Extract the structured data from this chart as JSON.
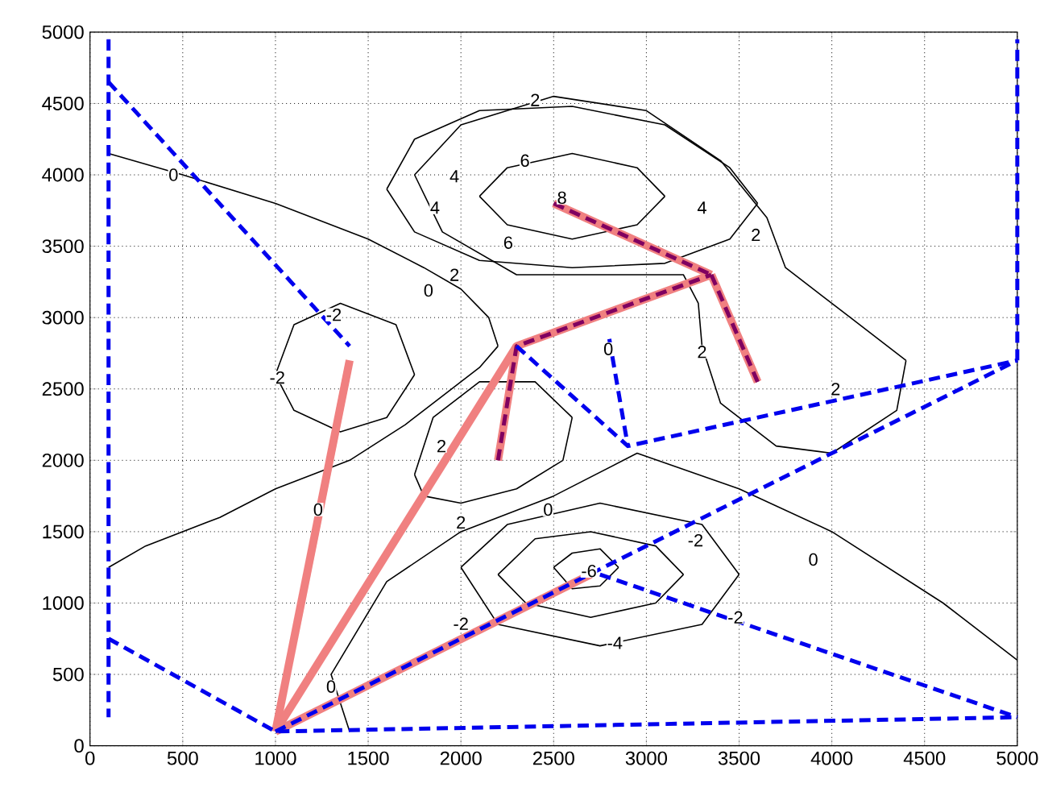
{
  "chart_data": {
    "type": "line",
    "xlim": [
      0,
      5000
    ],
    "ylim": [
      0,
      5000
    ],
    "xticks": [
      0,
      500,
      1000,
      1500,
      2000,
      2500,
      3000,
      3500,
      4000,
      4500,
      5000
    ],
    "yticks": [
      0,
      500,
      1000,
      1500,
      2000,
      2500,
      3000,
      3500,
      4000,
      4500,
      5000
    ],
    "grid": true,
    "marker": "none",
    "series": [
      {
        "color": "#000000",
        "line_style": "solid",
        "x": [
          100,
          500,
          1000,
          1500,
          1800,
          2000,
          2150,
          2200
        ],
        "values": [
          4150,
          4000,
          3800,
          3550,
          3350,
          3200,
          3000,
          2800
        ]
      },
      {
        "color": "#000000",
        "line_style": "solid",
        "x": [
          100,
          300,
          700,
          1000,
          1400,
          1700,
          1900,
          2100,
          2200
        ],
        "values": [
          1250,
          1400,
          1600,
          1800,
          2000,
          2250,
          2450,
          2650,
          2800
        ]
      },
      {
        "color": "#000000",
        "line_style": "solid",
        "x": [
          1000,
          1100,
          1350,
          1650,
          1750
        ],
        "values": [
          2600,
          2950,
          3100,
          2950,
          2600
        ]
      },
      {
        "color": "#000000",
        "line_style": "solid",
        "x": [
          1000,
          1100,
          1350,
          1600,
          1750
        ],
        "values": [
          2600,
          2350,
          2200,
          2300,
          2600
        ]
      },
      {
        "color": "#000000",
        "line_style": "solid",
        "x": [
          1750,
          1850,
          2100,
          2400,
          2600
        ],
        "values": [
          1900,
          2300,
          2550,
          2550,
          2300
        ]
      },
      {
        "color": "#000000",
        "line_style": "solid",
        "x": [
          1750,
          1800,
          2000,
          2300,
          2550,
          2600
        ],
        "values": [
          1900,
          1750,
          1700,
          1800,
          2000,
          2300
        ]
      },
      {
        "color": "#000000",
        "line_style": "solid",
        "x": [
          1750,
          2000,
          2500,
          3000,
          3400,
          3650,
          3750,
          4100,
          4400
        ],
        "values": [
          4000,
          4350,
          4550,
          4450,
          4100,
          3700,
          3350,
          3000,
          2700
        ]
      },
      {
        "color": "#000000",
        "line_style": "solid",
        "x": [
          1750,
          1900,
          2300,
          2800,
          3200,
          3280,
          3300,
          3400,
          3700,
          4000,
          4350,
          4400
        ],
        "values": [
          4000,
          3600,
          3300,
          3300,
          3300,
          3100,
          2800,
          2400,
          2100,
          2050,
          2350,
          2700
        ]
      },
      {
        "color": "#000000",
        "line_style": "solid",
        "x": [
          1600,
          1750,
          2100,
          2600,
          3100,
          3450,
          3600
        ],
        "values": [
          3900,
          4250,
          4450,
          4480,
          4350,
          4050,
          3800
        ]
      },
      {
        "color": "#000000",
        "line_style": "solid",
        "x": [
          1600,
          1750,
          2100,
          2600,
          3100,
          3450,
          3600
        ],
        "values": [
          3900,
          3600,
          3400,
          3350,
          3380,
          3550,
          3800
        ]
      },
      {
        "color": "#000000",
        "line_style": "solid",
        "x": [
          2100,
          2250,
          2600,
          2950,
          3100
        ],
        "values": [
          3850,
          4050,
          4150,
          4050,
          3850
        ]
      },
      {
        "color": "#000000",
        "line_style": "solid",
        "x": [
          2100,
          2250,
          2600,
          2950,
          3100
        ],
        "values": [
          3850,
          3650,
          3550,
          3650,
          3850
        ]
      },
      {
        "color": "#000000",
        "line_style": "solid",
        "x": [
          1300,
          1400
        ],
        "values": [
          500,
          100
        ]
      },
      {
        "color": "#000000",
        "line_style": "solid",
        "x": [
          1300,
          1350,
          1600,
          2000,
          2500,
          2950,
          3500,
          4000,
          4600,
          5000
        ],
        "values": [
          500,
          null,
          1150,
          1500,
          1750,
          2050,
          1800,
          1500,
          1000,
          600
        ]
      },
      {
        "color": "#000000",
        "line_style": "solid",
        "x": [
          2000,
          2250,
          2750,
          3300,
          3500
        ],
        "values": [
          1250,
          1550,
          1700,
          1550,
          1200
        ]
      },
      {
        "color": "#000000",
        "line_style": "solid",
        "x": [
          2000,
          2200,
          2750,
          3300,
          3500
        ],
        "values": [
          1250,
          850,
          700,
          850,
          1200
        ]
      },
      {
        "color": "#000000",
        "line_style": "solid",
        "x": [
          2200,
          2400,
          2700,
          3050,
          3200
        ],
        "values": [
          1200,
          1450,
          1500,
          1400,
          1200
        ]
      },
      {
        "color": "#000000",
        "line_style": "solid",
        "x": [
          2200,
          2350,
          2700,
          3050,
          3200
        ],
        "values": [
          1200,
          1000,
          900,
          1000,
          1200
        ]
      },
      {
        "color": "#000000",
        "line_style": "solid",
        "x": [
          2500,
          2600,
          2750,
          2850
        ],
        "values": [
          1250,
          1350,
          1380,
          1250
        ]
      },
      {
        "color": "#000000",
        "line_style": "solid",
        "x": [
          2500,
          2600,
          2750,
          2850
        ],
        "values": [
          1250,
          1100,
          1120,
          1250
        ]
      },
      {
        "color": "#f08080",
        "line_style": "solid",
        "x": [
          1000,
          1400
        ],
        "values": [
          100,
          2700
        ]
      },
      {
        "color": "#f08080",
        "line_style": "solid",
        "x": [
          1000,
          2300
        ],
        "values": [
          100,
          2800
        ]
      },
      {
        "color": "#f08080",
        "line_style": "solid",
        "x": [
          1000,
          2700
        ],
        "values": [
          100,
          1200
        ]
      },
      {
        "color": "#f08080",
        "line_style": "solid",
        "x": [
          2200,
          2300,
          3350
        ],
        "values": [
          2000,
          2800,
          3300
        ]
      },
      {
        "color": "#f08080",
        "line_style": "solid",
        "x": [
          2500,
          3350
        ],
        "values": [
          3800,
          3300
        ]
      },
      {
        "color": "#f08080",
        "line_style": "solid",
        "x": [
          3350,
          3600
        ],
        "values": [
          3300,
          2550
        ]
      },
      {
        "color": "#800060",
        "line_style": "dashed",
        "x": [
          2200,
          2300,
          3350
        ],
        "values": [
          2000,
          2800,
          3300
        ]
      },
      {
        "color": "#800060",
        "line_style": "dashed",
        "x": [
          2500,
          3350
        ],
        "values": [
          3800,
          3300
        ]
      },
      {
        "color": "#800060",
        "line_style": "dashed",
        "x": [
          3350,
          3600
        ],
        "values": [
          3300,
          2550
        ]
      },
      {
        "color": "#0000ee",
        "line_style": "dashed",
        "x": [
          100,
          100
        ],
        "values": [
          4950,
          200
        ]
      },
      {
        "color": "#0000ee",
        "line_style": "dashed",
        "x": [
          100,
          1400
        ],
        "values": [
          4650,
          2800
        ]
      },
      {
        "color": "#0000ee",
        "line_style": "dashed",
        "x": [
          100,
          1000,
          5000
        ],
        "values": [
          750,
          100,
          200
        ]
      },
      {
        "color": "#0000ee",
        "line_style": "dashed",
        "x": [
          1000,
          5000
        ],
        "values": [
          100,
          2700
        ]
      },
      {
        "color": "#0000ee",
        "line_style": "dashed",
        "x": [
          2750,
          5000
        ],
        "values": [
          1200,
          200
        ]
      },
      {
        "color": "#0000ee",
        "line_style": "dashed",
        "x": [
          2300,
          2900,
          5000
        ],
        "values": [
          2800,
          2100,
          2700
        ]
      },
      {
        "color": "#0000ee",
        "line_style": "dashed",
        "x": [
          5000,
          5000
        ],
        "values": [
          2700,
          4950
        ]
      },
      {
        "color": "#0000ee",
        "line_style": "dashed",
        "x": [
          2800,
          2900
        ],
        "values": [
          2850,
          2100
        ]
      }
    ],
    "annotations": [
      {
        "text": "0",
        "x": 450,
        "y": 4000
      },
      {
        "text": "0",
        "x": 1825,
        "y": 3190
      },
      {
        "text": "2",
        "x": 1965,
        "y": 3300
      },
      {
        "text": "2",
        "x": 2400,
        "y": 4525
      },
      {
        "text": "4",
        "x": 1965,
        "y": 3990
      },
      {
        "text": "4",
        "x": 1860,
        "y": 3770
      },
      {
        "text": "6",
        "x": 2345,
        "y": 4100
      },
      {
        "text": "6",
        "x": 2255,
        "y": 3525
      },
      {
        "text": "8",
        "x": 2545,
        "y": 3840
      },
      {
        "text": "4",
        "x": 3300,
        "y": 3770
      },
      {
        "text": "2",
        "x": 3590,
        "y": 3580
      },
      {
        "text": "2",
        "x": 3300,
        "y": 2760
      },
      {
        "text": "-2",
        "x": 1315,
        "y": 3020
      },
      {
        "text": "-2",
        "x": 1010,
        "y": 2580
      },
      {
        "text": "2",
        "x": 4020,
        "y": 2500
      },
      {
        "text": "0",
        "x": 2795,
        "y": 2780
      },
      {
        "text": "2",
        "x": 1895,
        "y": 2100
      },
      {
        "text": "0",
        "x": 1230,
        "y": 1655
      },
      {
        "text": "2",
        "x": 2000,
        "y": 1565
      },
      {
        "text": "0",
        "x": 2470,
        "y": 1655
      },
      {
        "text": "-2",
        "x": 3265,
        "y": 1440
      },
      {
        "text": "0",
        "x": 3900,
        "y": 1305
      },
      {
        "text": "-6",
        "x": 2690,
        "y": 1225
      },
      {
        "text": "-2",
        "x": 2000,
        "y": 855
      },
      {
        "text": "-4",
        "x": 2830,
        "y": 720
      },
      {
        "text": "-2",
        "x": 3480,
        "y": 900
      },
      {
        "text": "0",
        "x": 1300,
        "y": 415
      }
    ]
  }
}
